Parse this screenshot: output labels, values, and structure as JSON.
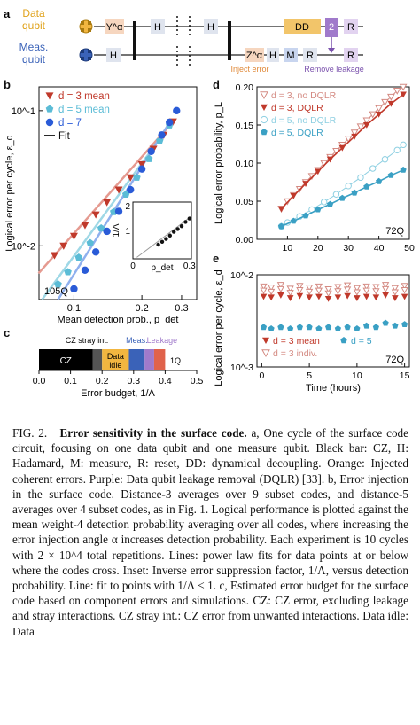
{
  "panel_a": {
    "letter": "a",
    "data_qubit_label": [
      "Data",
      "qubit"
    ],
    "meas_qubit_label": [
      "Meas.",
      "qubit"
    ],
    "gates_top": [
      "Y^α",
      "H",
      "H",
      "DD",
      "2",
      "R"
    ],
    "gates_bottom": [
      "H",
      "Z^α",
      "H",
      "M",
      "R",
      "R"
    ],
    "inject_error_label": "Inject error",
    "remove_leakage_label": "Remove leakage",
    "colors": {
      "orange": "#f2b640",
      "blue": "#3a62b8",
      "purple": "#a07acb",
      "gate": "#dfe4ee"
    }
  },
  "panel_b": {
    "letter": "b",
    "ylabel": "Logical error per cycle, ε_d",
    "xlabel": "Mean detection prob., p_det",
    "tag": "105Q",
    "legend": [
      "d = 3 mean",
      "d = 5 mean",
      "d = 7",
      "Fit"
    ],
    "y_ticks": [
      "10^-1",
      "10^-2"
    ],
    "x_ticks": [
      "0.1",
      "0.2",
      "0.3"
    ],
    "inset": {
      "ylabel": "1/Λ",
      "xlabel": "p_det",
      "y_ticks": [
        "1",
        "2"
      ],
      "x_ticks": [
        "0",
        "0.3"
      ]
    },
    "colors": {
      "d3": "#c0392b",
      "d5": "#5bbcd6",
      "d7": "#2a5bd7"
    }
  },
  "panel_c": {
    "letter": "c",
    "xlabel": "Error budget, 1/Λ",
    "x_ticks": [
      "0.0",
      "0.1",
      "0.2",
      "0.3",
      "0.4",
      "0.5"
    ],
    "segment_labels": {
      "cz": "CZ",
      "stray": "CZ stray int.",
      "idle": [
        "Data",
        "idle"
      ],
      "meas": "Meas.",
      "leak": "Leakage",
      "oneq": "1Q"
    }
  },
  "panel_d": {
    "letter": "d",
    "ylabel": "Logical error probability, p_L",
    "xlabel": "QEC cycle, t",
    "tag": "72Q",
    "legend": [
      "d = 3, no DQLR",
      "d = 3, DQLR",
      "d = 5, no DQLR",
      "d = 5, DQLR"
    ],
    "y_ticks": [
      "0.00",
      "0.05",
      "0.10",
      "0.15",
      "0.20"
    ],
    "x_ticks": [
      "10",
      "20",
      "30",
      "40",
      "50"
    ]
  },
  "panel_e": {
    "letter": "e",
    "ylabel": "Logical error per cycle, ε_d",
    "xlabel": "Time (hours)",
    "tag": "72Q",
    "legend": [
      "d = 3 mean",
      "d = 5",
      "d = 3 indiv."
    ],
    "y_ticks": [
      "10^-2",
      "10^-3"
    ],
    "x_ticks": [
      "0",
      "5",
      "10",
      "15"
    ]
  },
  "chart_data": [
    {
      "type": "scatter",
      "panel": "b",
      "xlabel": "Mean detection prob., p_det",
      "ylabel": "Logical error per cycle, ε_d",
      "xscale": "log",
      "yscale": "log",
      "xlim": [
        0.07,
        0.35
      ],
      "ylim": [
        0.004,
        0.15
      ],
      "series": [
        {
          "name": "d = 3 mean",
          "x": [
            0.082,
            0.09,
            0.1,
            0.112,
            0.125,
            0.14,
            0.158,
            0.178,
            0.2,
            0.225,
            0.25,
            0.275
          ],
          "y": [
            0.0085,
            0.01,
            0.0118,
            0.0142,
            0.017,
            0.021,
            0.026,
            0.032,
            0.04,
            0.052,
            0.066,
            0.083
          ]
        },
        {
          "name": "d = 5 mean",
          "x": [
            0.085,
            0.094,
            0.105,
            0.118,
            0.132,
            0.15,
            0.17,
            0.19,
            0.215,
            0.24,
            0.265
          ],
          "y": [
            0.0052,
            0.0064,
            0.0082,
            0.0105,
            0.0135,
            0.0178,
            0.024,
            0.032,
            0.044,
            0.06,
            0.078
          ]
        },
        {
          "name": "d = 7",
          "x": [
            0.1,
            0.112,
            0.125,
            0.14,
            0.158,
            0.178,
            0.2,
            0.22,
            0.245,
            0.265,
            0.285
          ],
          "y": [
            0.0048,
            0.0066,
            0.009,
            0.0128,
            0.018,
            0.026,
            0.037,
            0.05,
            0.066,
            0.082,
            0.1
          ]
        }
      ]
    },
    {
      "type": "scatter",
      "panel": "b-inset",
      "xlabel": "p_det",
      "ylabel": "1/Λ",
      "xlim": [
        0,
        0.3
      ],
      "ylim": [
        0,
        2
      ],
      "series": [
        {
          "name": "",
          "x": [
            0.13,
            0.15,
            0.17,
            0.19,
            0.21,
            0.23,
            0.25,
            0.27,
            0.29
          ],
          "y": [
            0.5,
            0.6,
            0.7,
            0.82,
            0.95,
            1.05,
            1.15,
            1.3,
            1.42
          ]
        }
      ]
    },
    {
      "type": "bar",
      "panel": "c",
      "orientation": "horizontal-stacked",
      "xlabel": "Error budget, 1/Λ",
      "xlim": [
        0,
        0.5
      ],
      "categories": [
        "CZ",
        "CZ stray int.",
        "Data idle",
        "Meas.",
        "Leakage",
        "1Q"
      ],
      "values": [
        0.17,
        0.03,
        0.085,
        0.05,
        0.03,
        0.035
      ],
      "colors": [
        "#000000",
        "#555555",
        "#f2b640",
        "#3a62b8",
        "#a07acb",
        "#e0624b"
      ]
    },
    {
      "type": "line",
      "panel": "d",
      "xlabel": "QEC cycle, t",
      "ylabel": "Logical error probability, p_L",
      "xlim": [
        0,
        50
      ],
      "ylim": [
        0,
        0.2
      ],
      "series": [
        {
          "name": "d = 3, no DQLR",
          "x": [
            8,
            10,
            12,
            14,
            16,
            18,
            20,
            22,
            24,
            26,
            28,
            30,
            32,
            34,
            36,
            38,
            40,
            42,
            44,
            46,
            48
          ],
          "y": [
            0.04,
            0.05,
            0.058,
            0.066,
            0.075,
            0.083,
            0.091,
            0.1,
            0.108,
            0.116,
            0.124,
            0.132,
            0.14,
            0.148,
            0.156,
            0.164,
            0.172,
            0.18,
            0.187,
            0.195,
            0.2
          ]
        },
        {
          "name": "d = 3, DQLR",
          "x": [
            8,
            12,
            16,
            20,
            24,
            28,
            32,
            36,
            40,
            44,
            48
          ],
          "y": [
            0.04,
            0.057,
            0.073,
            0.089,
            0.105,
            0.12,
            0.135,
            0.15,
            0.164,
            0.178,
            0.19
          ]
        },
        {
          "name": "d = 5, no DQLR",
          "x": [
            8,
            10,
            14,
            18,
            22,
            26,
            30,
            34,
            38,
            42,
            46,
            48
          ],
          "y": [
            0.017,
            0.022,
            0.03,
            0.039,
            0.049,
            0.059,
            0.07,
            0.081,
            0.093,
            0.105,
            0.117,
            0.124
          ]
        },
        {
          "name": "d = 5, DQLR",
          "x": [
            8,
            12,
            16,
            20,
            24,
            28,
            32,
            36,
            40,
            44,
            48
          ],
          "y": [
            0.017,
            0.024,
            0.031,
            0.039,
            0.046,
            0.054,
            0.061,
            0.069,
            0.076,
            0.084,
            0.091
          ]
        }
      ]
    },
    {
      "type": "scatter",
      "panel": "e",
      "xlabel": "Time (hours)",
      "ylabel": "Logical error per cycle, ε_d",
      "xlim": [
        -0.5,
        15.5
      ],
      "yscale": "log",
      "ylim": [
        0.001,
        0.01
      ],
      "series": [
        {
          "name": "d = 3 mean",
          "x": [
            0.2,
            1,
            2,
            3,
            4,
            5,
            6,
            7,
            8,
            9,
            10,
            11,
            12,
            13,
            14,
            15
          ],
          "y": [
            0.0058,
            0.0057,
            0.006,
            0.0056,
            0.0059,
            0.0057,
            0.0058,
            0.0055,
            0.0057,
            0.0059,
            0.0056,
            0.0058,
            0.0057,
            0.006,
            0.0056,
            0.0058
          ]
        },
        {
          "name": "d = 5",
          "x": [
            0.2,
            1,
            2,
            3,
            4,
            5,
            6,
            7,
            8,
            9,
            10,
            11,
            12,
            13,
            14,
            15
          ],
          "y": [
            0.0027,
            0.0026,
            0.0027,
            0.0026,
            0.0027,
            0.0027,
            0.0026,
            0.0027,
            0.0026,
            0.0027,
            0.0026,
            0.0028,
            0.0027,
            0.003,
            0.0028,
            0.0029
          ]
        },
        {
          "name": "d = 3 indiv.",
          "x": [
            0.2,
            1,
            2,
            3,
            4,
            5,
            6,
            7,
            8,
            9,
            10,
            11,
            12,
            13,
            14,
            15
          ],
          "y": [
            0.0075,
            0.0073,
            0.0078,
            0.0071,
            0.0076,
            0.0073,
            0.0075,
            0.007,
            0.0074,
            0.0077,
            0.0072,
            0.0075,
            0.0074,
            0.0078,
            0.0072,
            0.0076
          ]
        }
      ]
    }
  ],
  "caption": {
    "fig": "FIG. 2.",
    "title": "Error sensitivity in the surface code.",
    "body": "a, One cycle of the surface code circuit, focusing on one data qubit and one measure qubit. Black bar: CZ, H: Hadamard, M: measure, R: reset, DD: dynamical decoupling. Orange: Injected coherent errors. Purple: Data qubit leakage removal (DQLR) [33]. b, Error injection in the surface code. Distance-3 averages over 9 subset codes, and distance-5 averages over 4 subset codes, as in Fig. 1. Logical performance is plotted against the mean weight-4 detection probability averaging over all codes, where increasing the error injection angle α increases detection probability. Each experiment is 10 cycles with 2 × 10^4 total repetitions. Lines: power law fits for data points at or below where the codes cross. Inset: Inverse error suppression factor, 1/Λ, versus detection probability. Line: fit to points with 1/Λ < 1. c, Estimated error budget for the surface code based on component errors and simulations. CZ: CZ error, excluding leakage and stray interactions. CZ stray int.: CZ error from unwanted interactions. Data idle: Data"
  }
}
